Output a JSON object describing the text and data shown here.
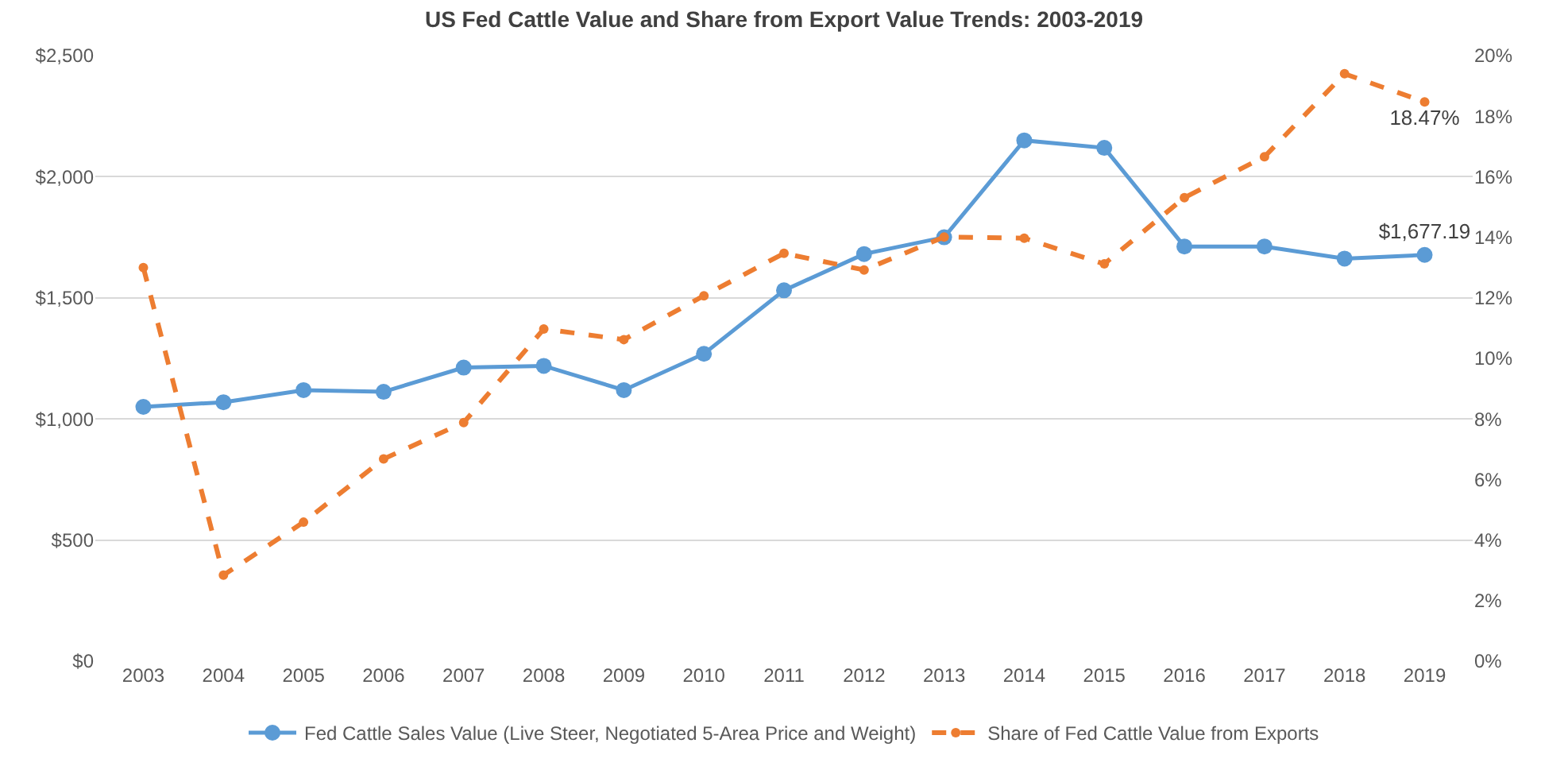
{
  "chart_data": {
    "type": "line",
    "title": "US Fed Cattle Value and Share from Export Value Trends: 2003-2019",
    "categories": [
      "2003",
      "2004",
      "2005",
      "2006",
      "2007",
      "2008",
      "2009",
      "2010",
      "2011",
      "2012",
      "2013",
      "2014",
      "2015",
      "2016",
      "2017",
      "2018",
      "2019"
    ],
    "series": [
      {
        "name": "Fed Cattle Sales Value (Live Steer, Negotiated 5-Area Price and Weight)",
        "color": "#5b9bd5",
        "line_style": "solid",
        "values": [
          1050,
          1069,
          1119,
          1112,
          1212,
          1219,
          1119,
          1269,
          1531,
          1681,
          1750,
          2150,
          2119,
          1712,
          1712,
          1662,
          1677.19
        ],
        "value_labels": [
          null,
          null,
          null,
          null,
          null,
          null,
          null,
          null,
          null,
          null,
          null,
          null,
          null,
          null,
          null,
          null,
          "$1,677.19"
        ]
      },
      {
        "name": "Share of Fed Cattle Value from Exports",
        "color": "#ed7d31",
        "line_style": "dashed",
        "axis": "y2",
        "values": [
          13.0,
          2.84,
          4.59,
          6.68,
          7.88,
          10.97,
          10.62,
          12.07,
          13.47,
          12.92,
          14.01,
          13.97,
          13.12,
          15.31,
          16.66,
          19.4,
          18.47
        ],
        "value_labels": [
          null,
          null,
          null,
          null,
          null,
          null,
          null,
          null,
          null,
          null,
          null,
          null,
          null,
          null,
          null,
          null,
          "18.47%"
        ]
      }
    ],
    "ylim": [
      0,
      2500
    ],
    "yticks": [
      {
        "value": 0,
        "label": "$0"
      },
      {
        "value": 500,
        "label": "$500"
      },
      {
        "value": 1000,
        "label": "$1,000"
      },
      {
        "value": 1500,
        "label": "$1,500"
      },
      {
        "value": 2000,
        "label": "$2,000"
      },
      {
        "value": 2500,
        "label": "$2,500"
      }
    ],
    "y2lim": [
      0,
      20
    ],
    "y2ticks": [
      {
        "value": 0,
        "label": "0%"
      },
      {
        "value": 2,
        "label": "2%"
      },
      {
        "value": 4,
        "label": "4%"
      },
      {
        "value": 6,
        "label": "6%"
      },
      {
        "value": 8,
        "label": "8%"
      },
      {
        "value": 10,
        "label": "10%"
      },
      {
        "value": 12,
        "label": "12%"
      },
      {
        "value": 14,
        "label": "14%"
      },
      {
        "value": 16,
        "label": "16%"
      },
      {
        "value": 18,
        "label": "18%"
      },
      {
        "value": 20,
        "label": "20%"
      }
    ],
    "grid": "y",
    "legend": "bottom",
    "marker": "circle"
  }
}
